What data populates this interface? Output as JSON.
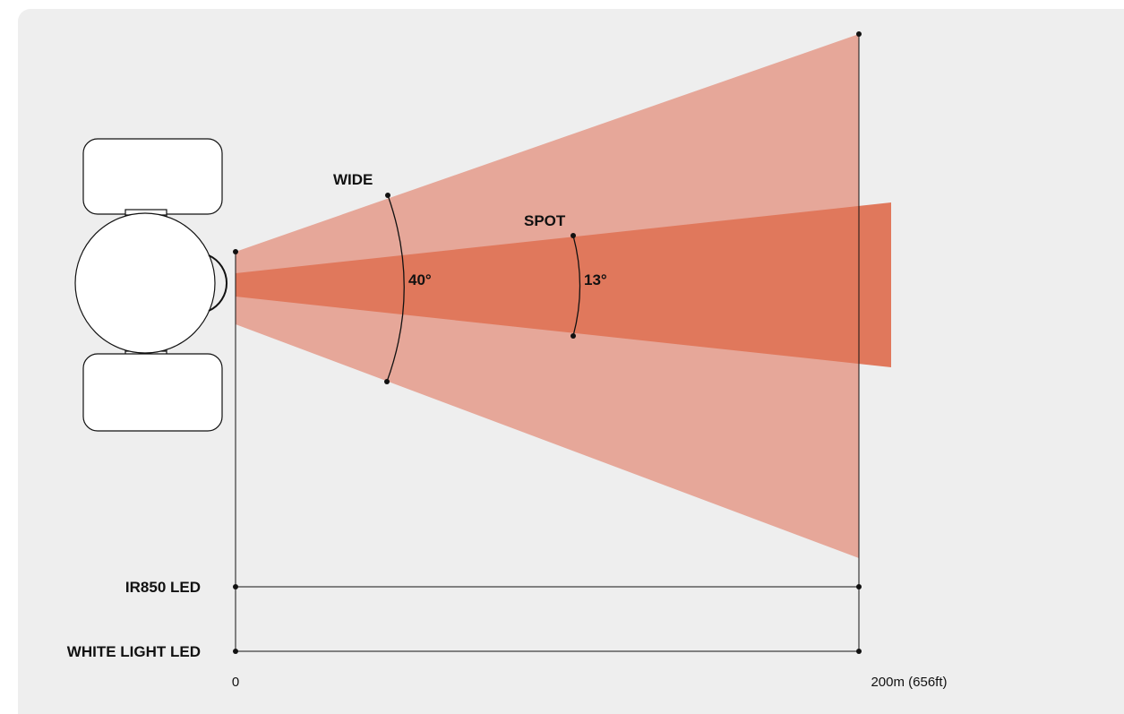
{
  "beams": [
    {
      "key": "wide",
      "label": "WIDE",
      "angle": "40°",
      "color": "#e6a799"
    },
    {
      "key": "spot",
      "label": "SPOT",
      "angle": "13°",
      "color": "#e0785c"
    }
  ],
  "distance_rows": [
    {
      "key": "ir850",
      "label": "IR850 LED"
    },
    {
      "key": "white",
      "label": "WHITE LIGHT LED"
    }
  ],
  "axis": {
    "start_label": "0",
    "end_label": "200m (656ft)"
  },
  "colors": {
    "background": "#eeeeee",
    "wide_beam": "#e6a799",
    "spot_beam": "#e0785c",
    "line": "#111111"
  },
  "device_icon": "light-unit-top-view-icon"
}
